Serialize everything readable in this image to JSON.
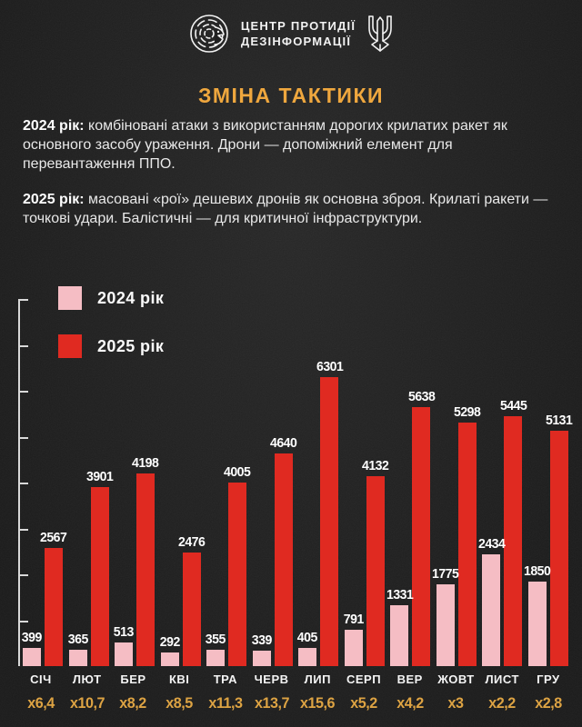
{
  "header": {
    "brand_line1": "ЦЕНТР ПРОТИДІЇ",
    "brand_line2": "ДЕЗІНФОРМАЦІЇ"
  },
  "title": "ЗМІНА ТАКТИКИ",
  "paragraphs": [
    {
      "lead": "2024 рік:",
      "text": " комбіновані атаки з використанням дорогих крилатих ракет як основного засобу ураження. Дрони — допоміжний елемент для перевантаження ППО."
    },
    {
      "lead": "2025 рік:",
      "text": " масовані «рої» дешевих дронів як основна зброя. Крилаті ракети — точкові удари. Балістичні — для критичної інфраструктури."
    }
  ],
  "colors": {
    "background": "#202020",
    "accent_gold": "#efa73e",
    "multiplier_gold": "#dda343",
    "pink_2024": "#f5bdc4",
    "red_2025": "#e02a21",
    "axis": "#d9d9d9"
  },
  "chart_data": {
    "type": "bar",
    "categories": [
      "СІЧ",
      "ЛЮТ",
      "БЕР",
      "КВІ",
      "ТРА",
      "ЧЕРВ",
      "ЛИП",
      "СЕРП",
      "ВЕР",
      "ЖОВТ",
      "ЛИСТ",
      "ГРУ"
    ],
    "series": [
      {
        "name": "2024 рік",
        "color": "#f5bdc4",
        "values": [
          399,
          365,
          513,
          292,
          355,
          339,
          405,
          791,
          1331,
          1775,
          2434,
          1850
        ]
      },
      {
        "name": "2025 рік",
        "color": "#e02a21",
        "values": [
          2567,
          3901,
          4198,
          2476,
          4005,
          4640,
          6301,
          4132,
          5638,
          5298,
          5445,
          5131
        ]
      }
    ],
    "multipliers": [
      "x6,4",
      "x10,7",
      "x8,2",
      "x8,5",
      "x11,3",
      "x13,7",
      "x15,6",
      "x5,2",
      "x4,2",
      "x3",
      "x2,2",
      "x2,8"
    ],
    "ylabel": "",
    "xlabel": "",
    "ylim": [
      0,
      8000
    ],
    "tick_interval": 1000,
    "grid": false,
    "legend_position": "top-left",
    "value_labels": true
  }
}
